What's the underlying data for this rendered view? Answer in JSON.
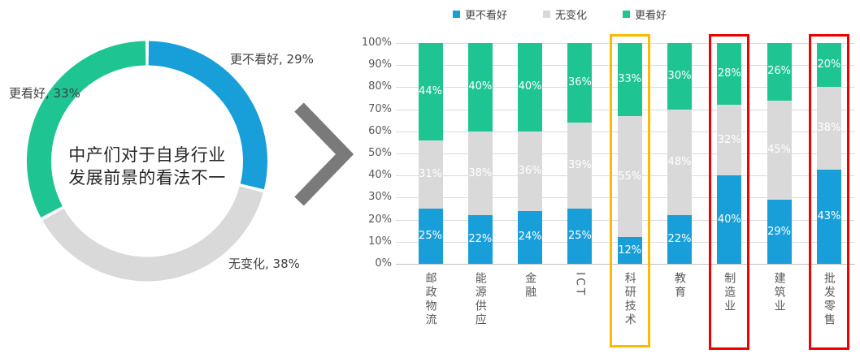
{
  "colors": {
    "negative_blue": "#189FD9",
    "neutral_gray": "#D9D9D9",
    "positive_green": "#1FC493",
    "axis_text": "#595959",
    "label_text": "#404040",
    "grid": "#DBDBDB",
    "chevron": "#7A7A7A",
    "bar_value_text": "#FFFFFF",
    "highlight_orange": "#FFB900",
    "highlight_red": "#EE0000"
  },
  "chart_data": [
    {
      "type": "pie",
      "donut": true,
      "start_angle_deg": 0,
      "direction": "clockwise",
      "labels": [
        "更不看好",
        "无变化",
        "更看好"
      ],
      "values": [
        29,
        38,
        33
      ],
      "slice_labels": [
        "更不看好, 29%",
        "无变化, 38%",
        "更看好, 33%"
      ],
      "colors": [
        "#189FD9",
        "#D9D9D9",
        "#1FC493"
      ],
      "center_text": [
        "中产们对于自身行业",
        "发展前景的看法不一"
      ]
    },
    {
      "type": "bar",
      "stacked": true,
      "percent_stacked": true,
      "categories": [
        "邮政物流",
        "能源供应",
        "金融",
        "ICT",
        "科研技术",
        "教育",
        "制造业",
        "建筑业",
        "批发零售"
      ],
      "series": [
        {
          "name": "更不看好",
          "color": "#189FD9",
          "values": [
            25,
            22,
            24,
            25,
            12,
            22,
            40,
            29,
            43
          ]
        },
        {
          "name": "无变化",
          "color": "#D9D9D9",
          "values": [
            31,
            38,
            36,
            39,
            55,
            48,
            32,
            45,
            38
          ]
        },
        {
          "name": "更看好",
          "color": "#1FC493",
          "values": [
            44,
            40,
            40,
            36,
            33,
            30,
            28,
            26,
            20
          ]
        }
      ],
      "ylim": [
        0,
        100
      ],
      "y_ticks": [
        "100%",
        "90%",
        "80%",
        "70%",
        "60%",
        "50%",
        "40%",
        "30%",
        "20%",
        "10%",
        "0%"
      ],
      "grid": true,
      "legend_position": "top",
      "value_label_suffix": "%",
      "highlights": [
        {
          "category_index": 4,
          "category": "科研技术",
          "color": "#FFB900"
        },
        {
          "category_index": 6,
          "category": "制造业",
          "color": "#EE0000"
        },
        {
          "category_index": 8,
          "category": "批发零售",
          "color": "#EE0000"
        }
      ]
    }
  ]
}
